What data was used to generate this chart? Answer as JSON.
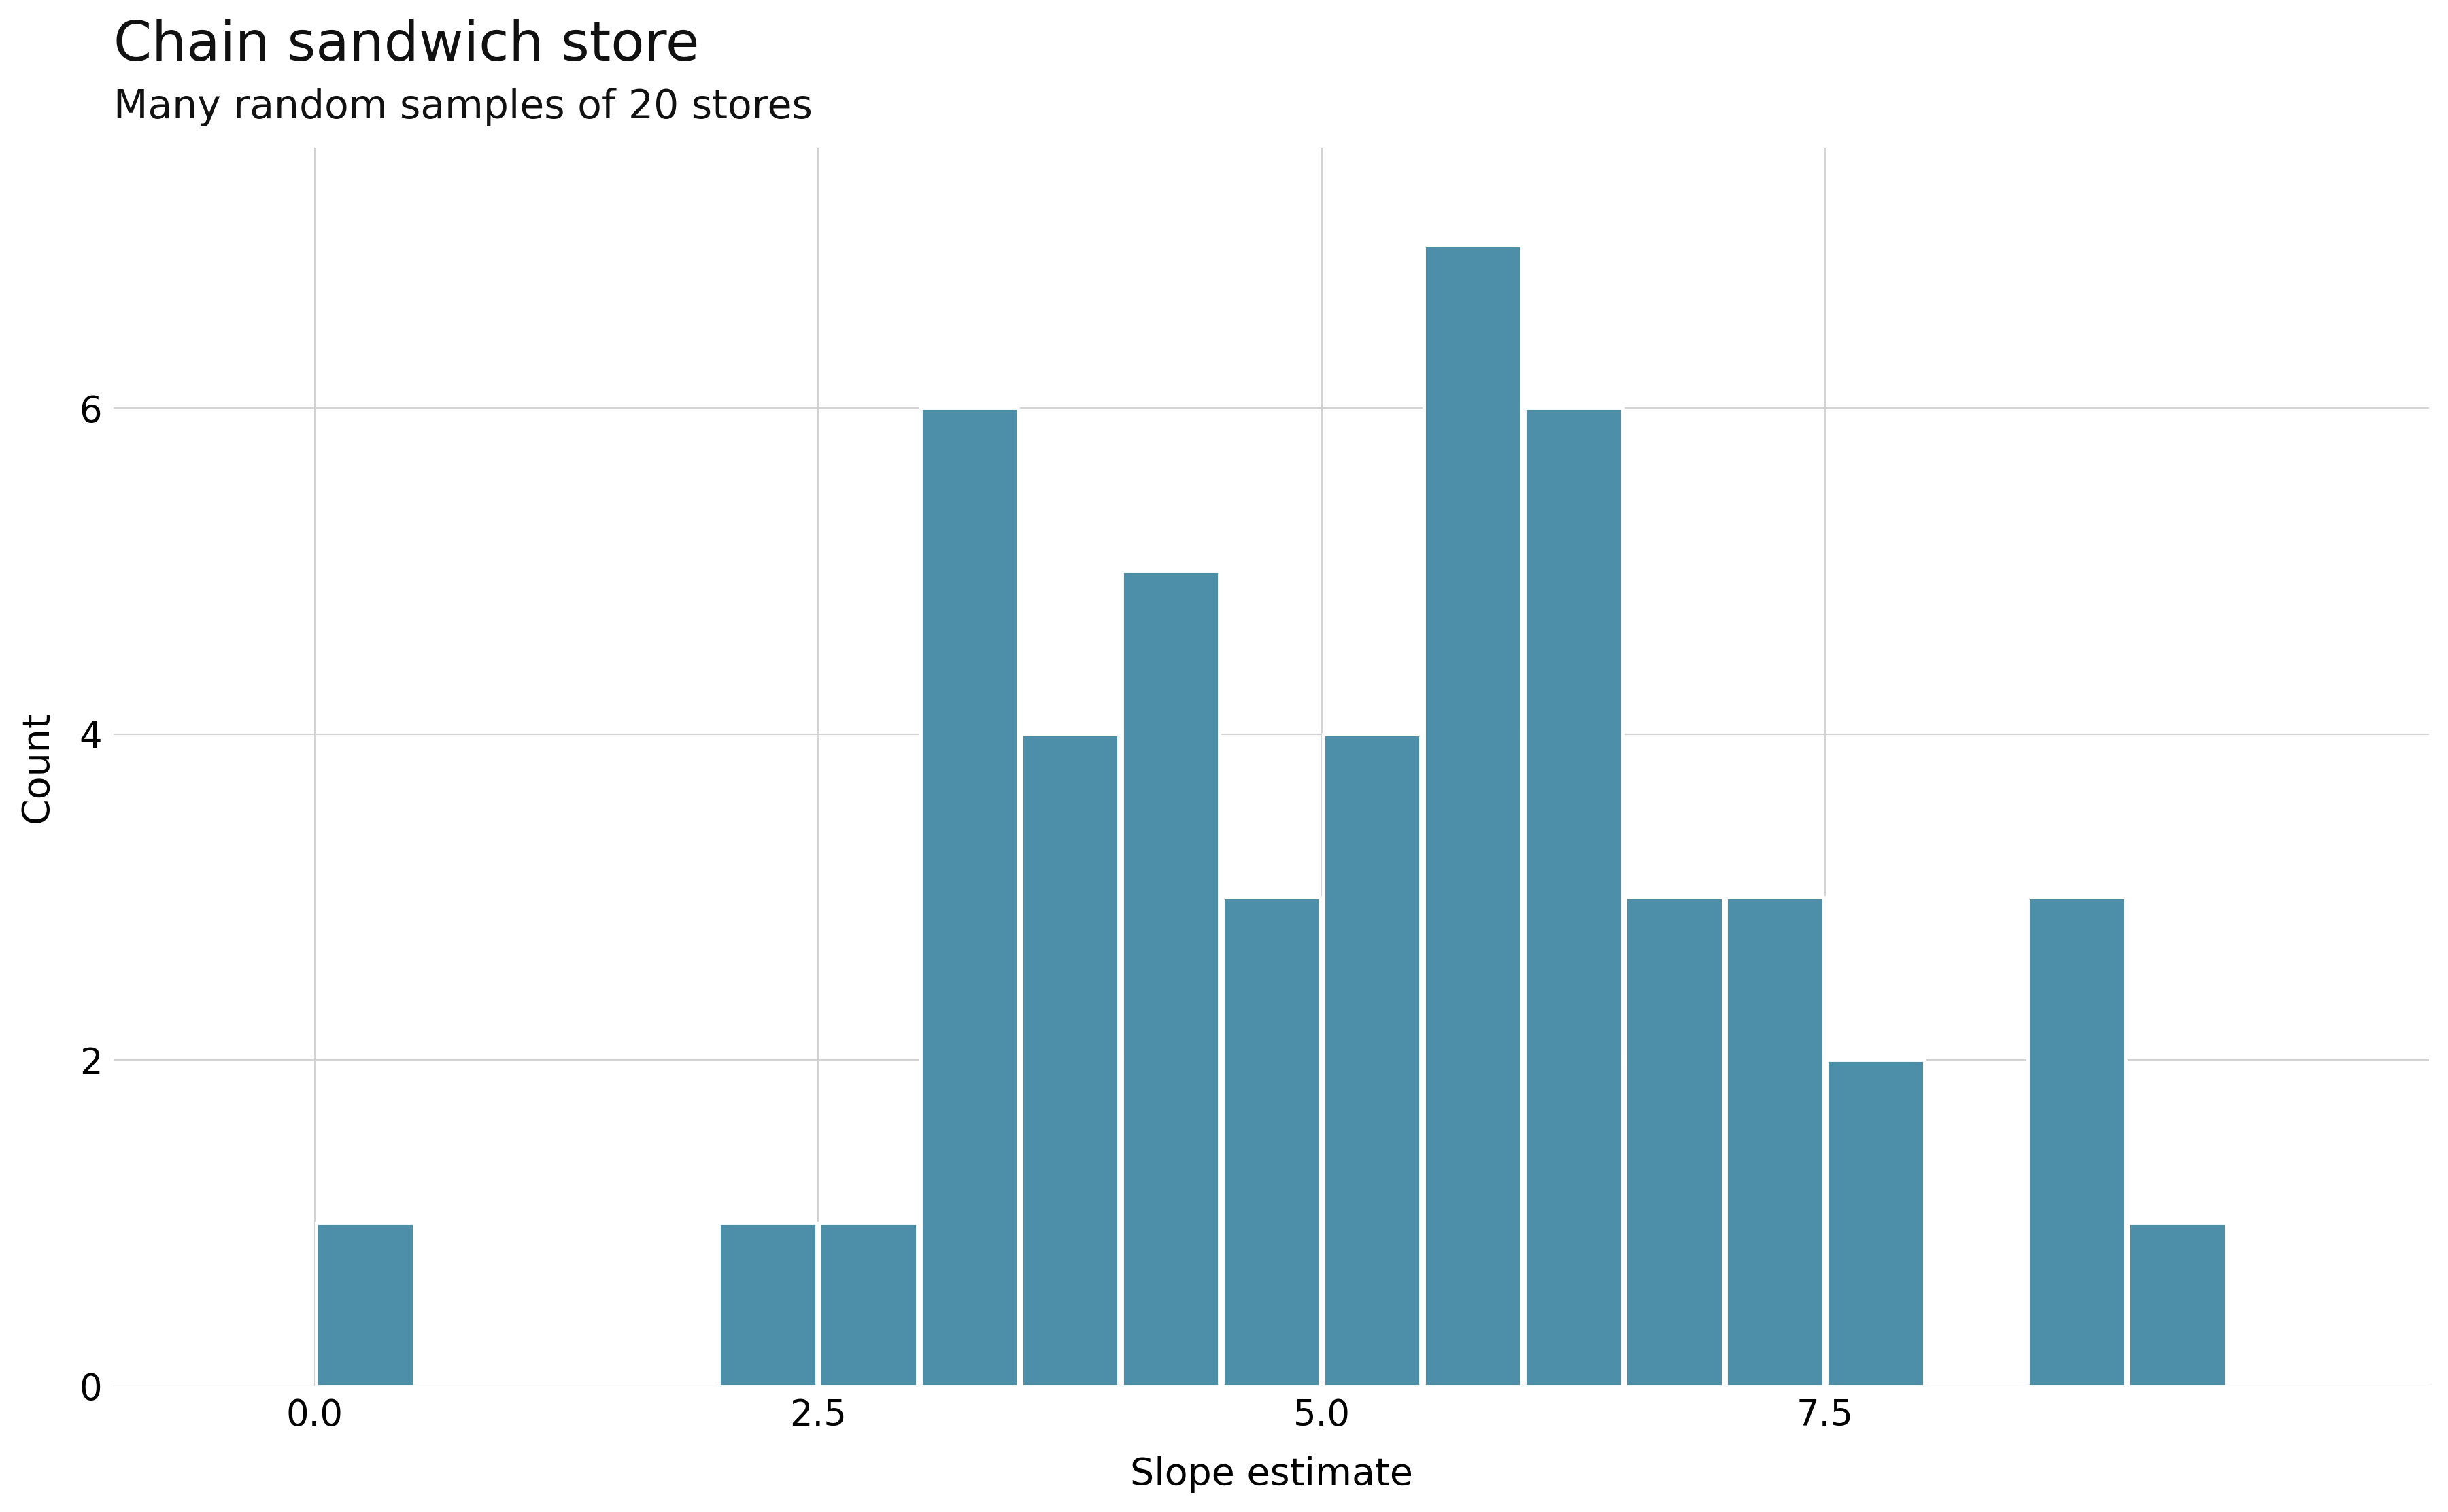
{
  "title": "Chain sandwich store",
  "subtitle": "Many random samples of 20 stores",
  "xlabel": "Slope estimate",
  "ylabel": "Count",
  "bar_color": "#4d8fa8",
  "background_color": "#ffffff",
  "grid_color": "#d3d3d3",
  "title_fontsize": 58,
  "subtitle_fontsize": 42,
  "axis_label_fontsize": 40,
  "tick_fontsize": 38,
  "bin_edges": [
    -0.5,
    0.0,
    0.5,
    1.0,
    1.5,
    2.0,
    2.5,
    3.0,
    3.5,
    4.0,
    4.5,
    5.0,
    5.5,
    6.0,
    6.5,
    7.0,
    7.5,
    8.0,
    8.5,
    9.0,
    9.5
  ],
  "bar_heights": [
    0,
    1,
    0,
    0,
    0,
    1,
    1,
    6,
    4,
    5,
    3,
    4,
    7,
    6,
    3,
    3,
    2,
    0,
    3,
    1,
    0
  ],
  "xlim": [
    -1.0,
    10.5
  ],
  "ylim": [
    0,
    7.6
  ],
  "yticks": [
    0,
    2,
    4,
    6
  ],
  "xticks": [
    0.0,
    2.5,
    5.0,
    7.5
  ]
}
